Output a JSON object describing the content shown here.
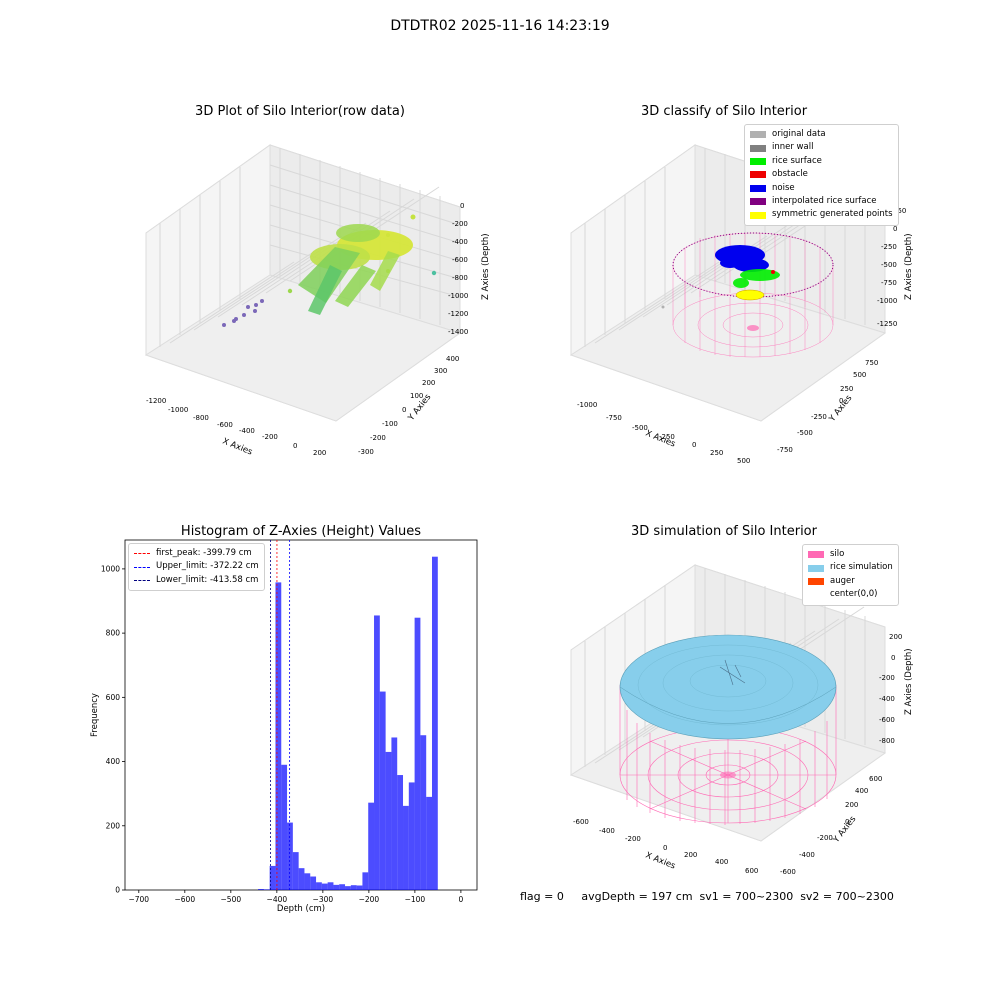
{
  "figure": {
    "title": "DTDTR02 2025-11-16 14:23:19",
    "footer": "flag = 0     avgDepth = 197 cm  sv1 = 700~2300  sv2 = 700~2300"
  },
  "panels": {
    "raw": {
      "title": "3D Plot of Silo Interior(row data)",
      "xlabel": "X Axies",
      "ylabel": "Y Axies",
      "zlabel": "Z Axies (Depth)",
      "xticks": [
        "-1200",
        "-1000",
        "-800",
        "-600",
        "-400",
        "-200",
        "0",
        "200"
      ],
      "yticks": [
        "-300",
        "-200",
        "-100",
        "0",
        "100",
        "200",
        "300",
        "400"
      ],
      "zticks": [
        "0",
        "-200",
        "-400",
        "-600",
        "-800",
        "-1000",
        "-1200",
        "-1400"
      ]
    },
    "classify": {
      "title": "3D classify of Silo Interior",
      "xlabel": "X Axies",
      "ylabel": "Y Axies",
      "zlabel": "Z Axies (Depth)",
      "xticks": [
        "-1000",
        "-750",
        "-500",
        "-250",
        "0",
        "250",
        "500"
      ],
      "yticks": [
        "-750",
        "-500",
        "-250",
        "0",
        "250",
        "500",
        "750"
      ],
      "zticks": [
        "250",
        "0",
        "-250",
        "-500",
        "-750",
        "-1000",
        "-1250"
      ],
      "legend": [
        {
          "label": "original data",
          "color": "#b0b0b0"
        },
        {
          "label": "inner wall",
          "color": "#808080"
        },
        {
          "label": "rice surface",
          "color": "#00ee00"
        },
        {
          "label": "obstacle",
          "color": "#ee0000"
        },
        {
          "label": "noise",
          "color": "#0000ee"
        },
        {
          "label": "interpolated rice surface",
          "color": "#800080"
        },
        {
          "label": "symmetric generated points",
          "color": "#ffff00"
        }
      ]
    },
    "simulation": {
      "title": "3D simulation of Silo Interior",
      "xlabel": "X Axies",
      "ylabel": "Y Axies",
      "zlabel": "Z Axies (Depth)",
      "xticks": [
        "-600",
        "-400",
        "-200",
        "0",
        "200",
        "400",
        "600"
      ],
      "yticks": [
        "-600",
        "-400",
        "-200",
        "0",
        "200",
        "400",
        "600"
      ],
      "zticks": [
        "200",
        "0",
        "-200",
        "-400",
        "-600",
        "-800"
      ],
      "legend": [
        {
          "label": "silo",
          "color": "#ff69b4"
        },
        {
          "label": "rice simulation",
          "color": "#87ceeb"
        },
        {
          "label": "auger",
          "color": "#ff4500"
        },
        {
          "label": "center(0,0)",
          "color": ""
        }
      ]
    }
  },
  "chart_data": {
    "type": "bar",
    "title": "Histogram of Z-Axies (Height) Values",
    "xlabel": "Depth (cm)",
    "ylabel": "Frequency",
    "xlim": [
      -730,
      35
    ],
    "ylim": [
      0,
      1090
    ],
    "xticks": [
      -700,
      -600,
      -500,
      -400,
      -300,
      -200,
      -100,
      0
    ],
    "yticks": [
      0,
      200,
      400,
      600,
      800,
      1000
    ],
    "bar_color": "#0000ff",
    "bin_width": 12.6,
    "bins": [
      {
        "x": -440.8,
        "count": 3
      },
      {
        "x": -428.2,
        "count": 2
      },
      {
        "x": -415.6,
        "count": 75
      },
      {
        "x": -403.0,
        "count": 958
      },
      {
        "x": -390.4,
        "count": 390
      },
      {
        "x": -377.8,
        "count": 210
      },
      {
        "x": -365.2,
        "count": 118
      },
      {
        "x": -352.6,
        "count": 68
      },
      {
        "x": -340.0,
        "count": 52
      },
      {
        "x": -327.4,
        "count": 42
      },
      {
        "x": -314.8,
        "count": 24
      },
      {
        "x": -302.2,
        "count": 20
      },
      {
        "x": -289.6,
        "count": 24
      },
      {
        "x": -277.0,
        "count": 16
      },
      {
        "x": -264.4,
        "count": 18
      },
      {
        "x": -251.8,
        "count": 12
      },
      {
        "x": -239.2,
        "count": 15
      },
      {
        "x": -226.6,
        "count": 14
      },
      {
        "x": -214.0,
        "count": 55
      },
      {
        "x": -201.4,
        "count": 272
      },
      {
        "x": -188.8,
        "count": 855
      },
      {
        "x": -176.2,
        "count": 618
      },
      {
        "x": -163.6,
        "count": 430
      },
      {
        "x": -151.0,
        "count": 475
      },
      {
        "x": -138.4,
        "count": 358
      },
      {
        "x": -125.8,
        "count": 262
      },
      {
        "x": -113.2,
        "count": 335
      },
      {
        "x": -100.6,
        "count": 848
      },
      {
        "x": -88.0,
        "count": 482
      },
      {
        "x": -75.4,
        "count": 290
      },
      {
        "x": -62.8,
        "count": 1038
      }
    ],
    "vlines": [
      {
        "label": "first_peak: -399.79 cm",
        "x": -399.79,
        "color": "#ff0000"
      },
      {
        "label": "Upper_limit: -372.22 cm",
        "x": -372.22,
        "color": "#0000ff"
      },
      {
        "label": "Lower_limit: -413.58 cm",
        "x": -413.58,
        "color": "#000080"
      }
    ],
    "legend_position": "upper left"
  }
}
